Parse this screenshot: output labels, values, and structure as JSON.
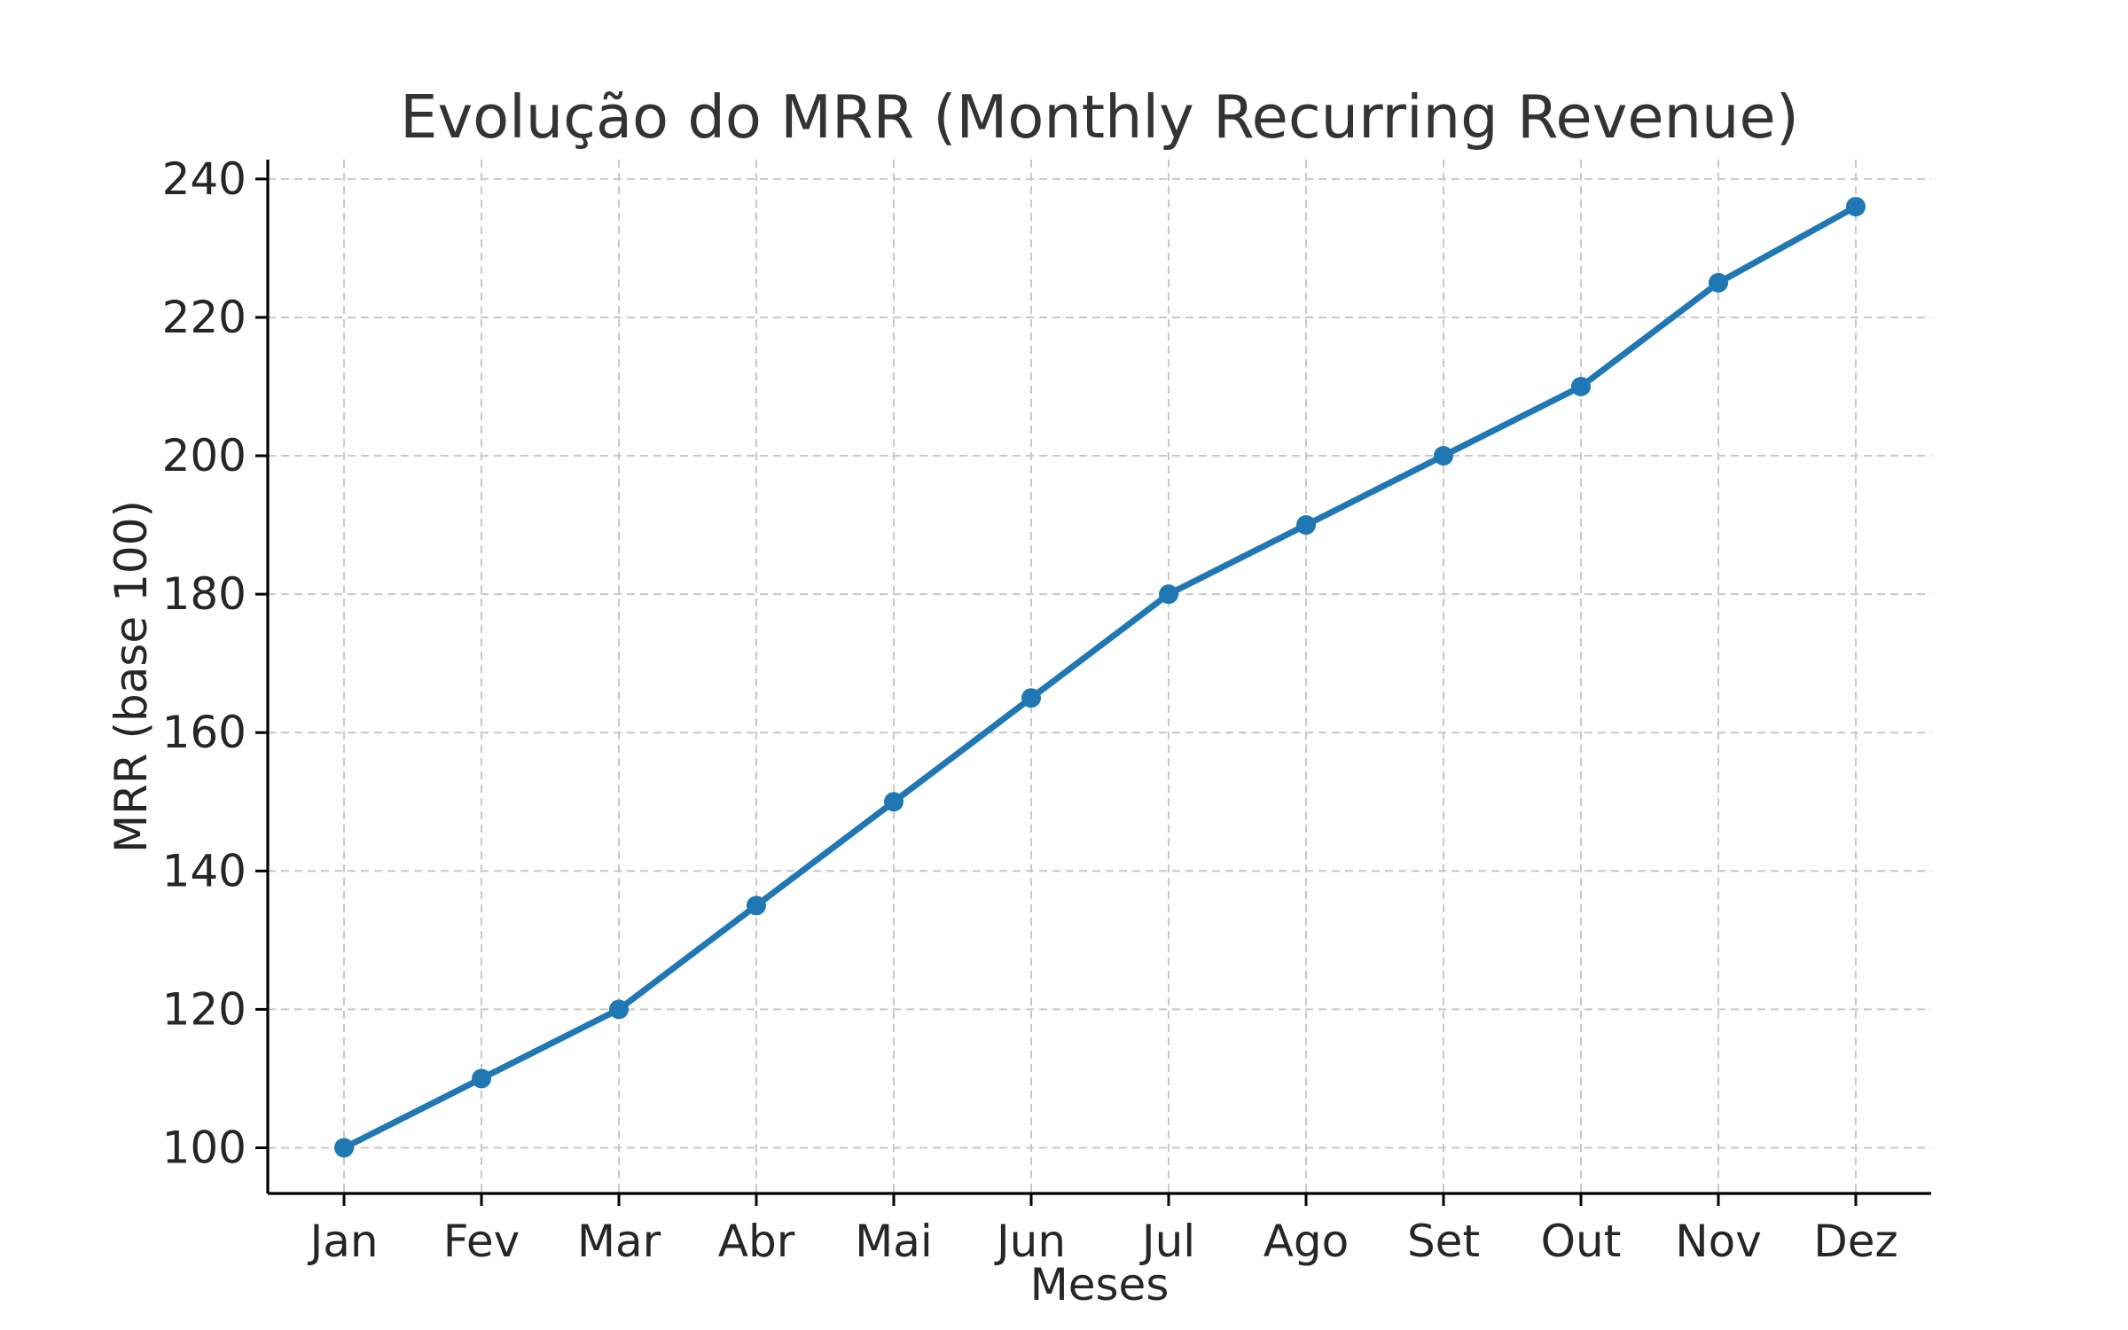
{
  "chart_data": {
    "type": "line",
    "title": "Evolução do MRR (Monthly Recurring Revenue)",
    "xlabel": "Meses",
    "ylabel": "MRR (base 100)",
    "categories": [
      "Jan",
      "Fev",
      "Mar",
      "Abr",
      "Mai",
      "Jun",
      "Jul",
      "Ago",
      "Set",
      "Out",
      "Nov",
      "Dez"
    ],
    "series": [
      {
        "values": [
          100,
          110,
          120,
          135,
          150,
          165,
          180,
          190,
          200,
          210,
          225,
          236
        ],
        "color": "#1f77b4",
        "marker": "circle"
      }
    ],
    "ylim": [
      93.4,
      242.8
    ],
    "yticks": [
      100,
      120,
      140,
      160,
      180,
      200,
      220,
      240
    ],
    "grid": true,
    "legend": "none"
  }
}
